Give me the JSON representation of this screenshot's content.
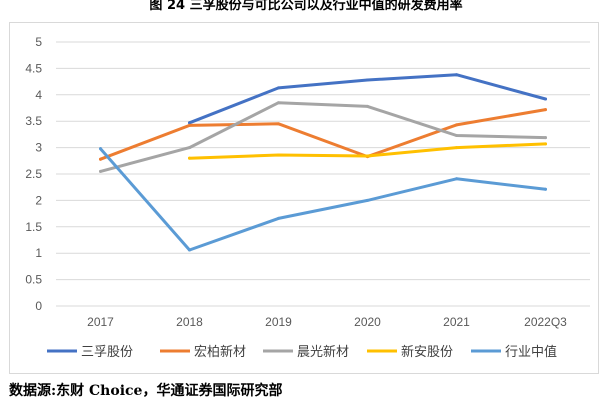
{
  "title": "图 24 三孚股份与可比公司以及行业中值的研发费用率",
  "source": "数据源:东财 Choice，华通证券国际研究部",
  "chart_data": {
    "type": "line",
    "categories": [
      "2017",
      "2018",
      "2019",
      "2020",
      "2021",
      "2022Q3"
    ],
    "y_ticks": [
      "0",
      "0.5",
      "1",
      "1.5",
      "2",
      "2.5",
      "3",
      "3.5",
      "4",
      "4.5",
      "5"
    ],
    "ylim": [
      0,
      5
    ],
    "grid": true,
    "legend_position": "bottom",
    "series": [
      {
        "name": "三孚股份",
        "color": "#4472C4",
        "values": [
          null,
          3.47,
          4.13,
          4.28,
          4.38,
          3.92
        ]
      },
      {
        "name": "宏柏新材",
        "color": "#ED7D31",
        "values": [
          2.78,
          3.42,
          3.45,
          2.83,
          3.43,
          3.72
        ]
      },
      {
        "name": "晨光新材",
        "color": "#A5A5A5",
        "values": [
          2.55,
          3.0,
          3.85,
          3.78,
          3.23,
          3.19
        ]
      },
      {
        "name": "新安股份",
        "color": "#FFC000",
        "values": [
          null,
          2.8,
          2.86,
          2.84,
          3.0,
          3.07
        ]
      },
      {
        "name": "行业中值",
        "color": "#5B9BD5",
        "values": [
          2.98,
          1.06,
          1.66,
          2.0,
          2.41,
          2.21
        ]
      }
    ]
  }
}
